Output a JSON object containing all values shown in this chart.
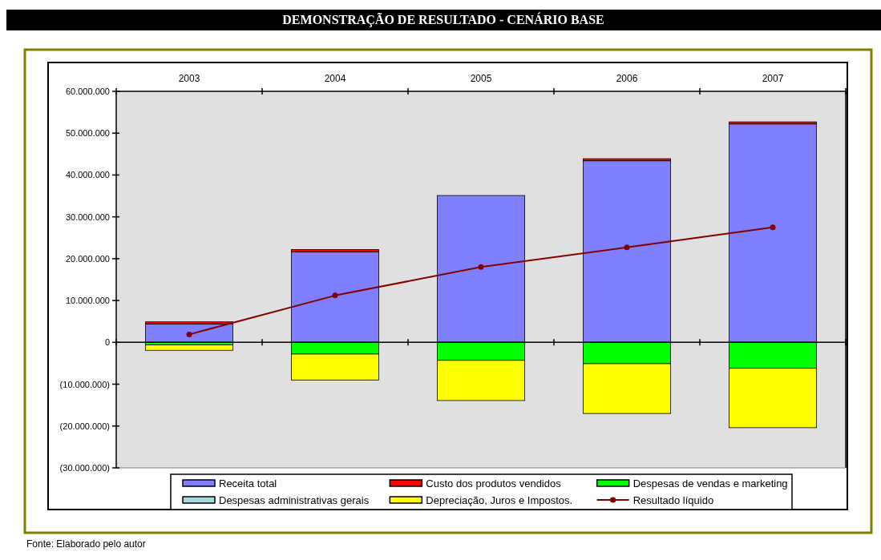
{
  "chart_data": {
    "type": "bar",
    "stacked": true,
    "title": "DEMONSTRAÇÃO DE RESULTADO - CENÁRIO BASE",
    "categories": [
      "2003",
      "2004",
      "2005",
      "2006",
      "2007"
    ],
    "series": [
      {
        "name": "Receita total",
        "color": "#8080ff",
        "values": [
          4400000,
          21600000,
          35100000,
          43400000,
          52200000
        ]
      },
      {
        "name": "Custo dos produtos vendidos",
        "color": "#ff0000",
        "values": [
          500000,
          600000,
          0,
          500000,
          500000
        ]
      },
      {
        "name": "Despesas de vendas e marketing",
        "color": "#00ff00",
        "values": [
          -600000,
          -2800000,
          -4300000,
          -5100000,
          -6200000
        ]
      },
      {
        "name": "Despesas administrativas gerais",
        "color": "#a6dcdc",
        "values": [
          0,
          0,
          0,
          0,
          0
        ]
      },
      {
        "name": "Depreciação, Juros e Impostos.",
        "color": "#ffff00",
        "values": [
          -1300000,
          -6200000,
          -9600000,
          -11900000,
          -14200000
        ]
      },
      {
        "name": "Resultado líquido",
        "type": "line",
        "color": "#800000",
        "marker": "circle",
        "values": [
          1900000,
          11200000,
          18000000,
          22700000,
          27500000
        ]
      }
    ],
    "ylim": [
      -30000000,
      60000000
    ],
    "yticks": [
      {
        "value": -30000000,
        "label": "(30.000.000)"
      },
      {
        "value": -20000000,
        "label": "(20.000.000)"
      },
      {
        "value": -10000000,
        "label": "(10.000.000)"
      },
      0,
      {
        "value": 10000000,
        "label": "10.000.000"
      },
      {
        "value": 20000000,
        "label": "20.000.000"
      },
      {
        "value": 30000000,
        "label": "30.000.000"
      },
      {
        "value": 40000000,
        "label": "40.000.000"
      },
      {
        "value": 50000000,
        "label": "50.000.000"
      },
      {
        "value": 60000000,
        "label": "60.000.000"
      }
    ],
    "legend": "bottom",
    "annotations": [
      "Fonte: Elaborado pelo autor"
    ]
  }
}
